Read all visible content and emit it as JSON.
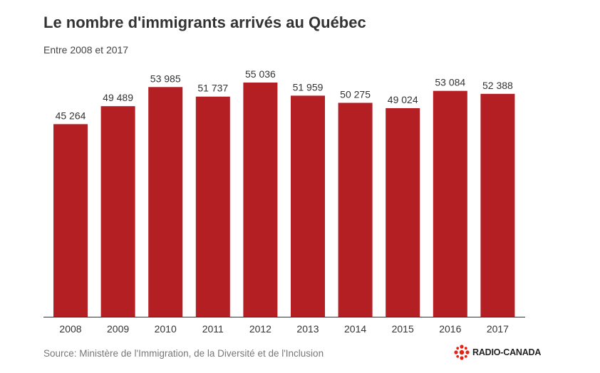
{
  "header": {
    "title": "Le nombre d'immigrants arrivés au Québec",
    "subtitle": "Entre 2008 et 2017"
  },
  "footer": {
    "source": "Source: Ministère de l'Immigration, de la Diversité et de l'Inclusion",
    "logo_text": "RADIO-CANADA"
  },
  "colors": {
    "bar": "#b41f24",
    "axis": "#333333",
    "logo": "#e42313"
  },
  "chart_data": {
    "type": "bar",
    "title": "Le nombre d'immigrants arrivés au Québec",
    "subtitle": "Entre 2008 et 2017",
    "categories": [
      "2008",
      "2009",
      "2010",
      "2011",
      "2012",
      "2013",
      "2014",
      "2015",
      "2016",
      "2017"
    ],
    "values": [
      45264,
      49489,
      53985,
      51737,
      55036,
      51959,
      50275,
      49024,
      53084,
      52388
    ],
    "data_labels": [
      "45 264",
      "49 489",
      "53 985",
      "51 737",
      "55 036",
      "51 959",
      "50 275",
      "49 024",
      "53 084",
      "52 388"
    ],
    "xlabel": "",
    "ylabel": "",
    "ylim": [
      0,
      55036
    ],
    "grid": false,
    "legend": "none"
  }
}
